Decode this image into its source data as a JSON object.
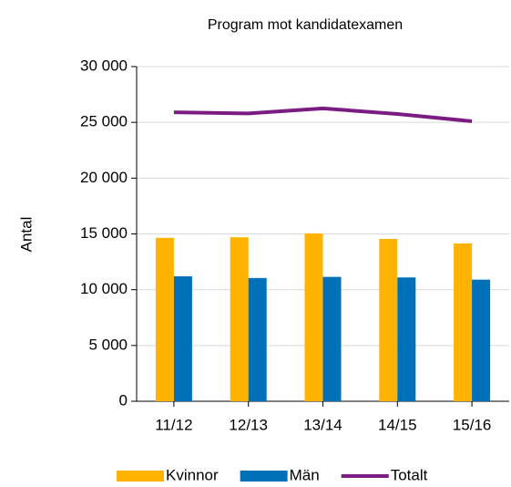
{
  "chart_data": {
    "type": "bar_line",
    "title": "Program mot kandidatexamen",
    "y_axis_label": "Antal",
    "categories": [
      "11/12",
      "12/13",
      "13/14",
      "14/15",
      "15/16"
    ],
    "series": [
      {
        "name": "Kvinnor",
        "type": "bar",
        "color": "#ffb300",
        "values": [
          14650,
          14700,
          15050,
          14550,
          14150
        ]
      },
      {
        "name": "Män",
        "type": "bar",
        "color": "#0070b8",
        "values": [
          11200,
          11050,
          11150,
          11100,
          10900
        ]
      },
      {
        "name": "Totalt",
        "type": "line",
        "color": "#7b1c83",
        "values": [
          25900,
          25800,
          26250,
          25750,
          25100
        ]
      }
    ],
    "ylim": [
      0,
      30000
    ],
    "yticks": [
      0,
      {
        "value": 5000,
        "label": "5 000"
      },
      {
        "value": 10000,
        "label": "10 000"
      },
      {
        "value": 15000,
        "label": "15 000"
      },
      {
        "value": 20000,
        "label": "20 000"
      },
      {
        "value": 25000,
        "label": "25 000"
      },
      {
        "value": 30000,
        "label": "30 000"
      }
    ],
    "grid": true,
    "legend": "bottom"
  }
}
